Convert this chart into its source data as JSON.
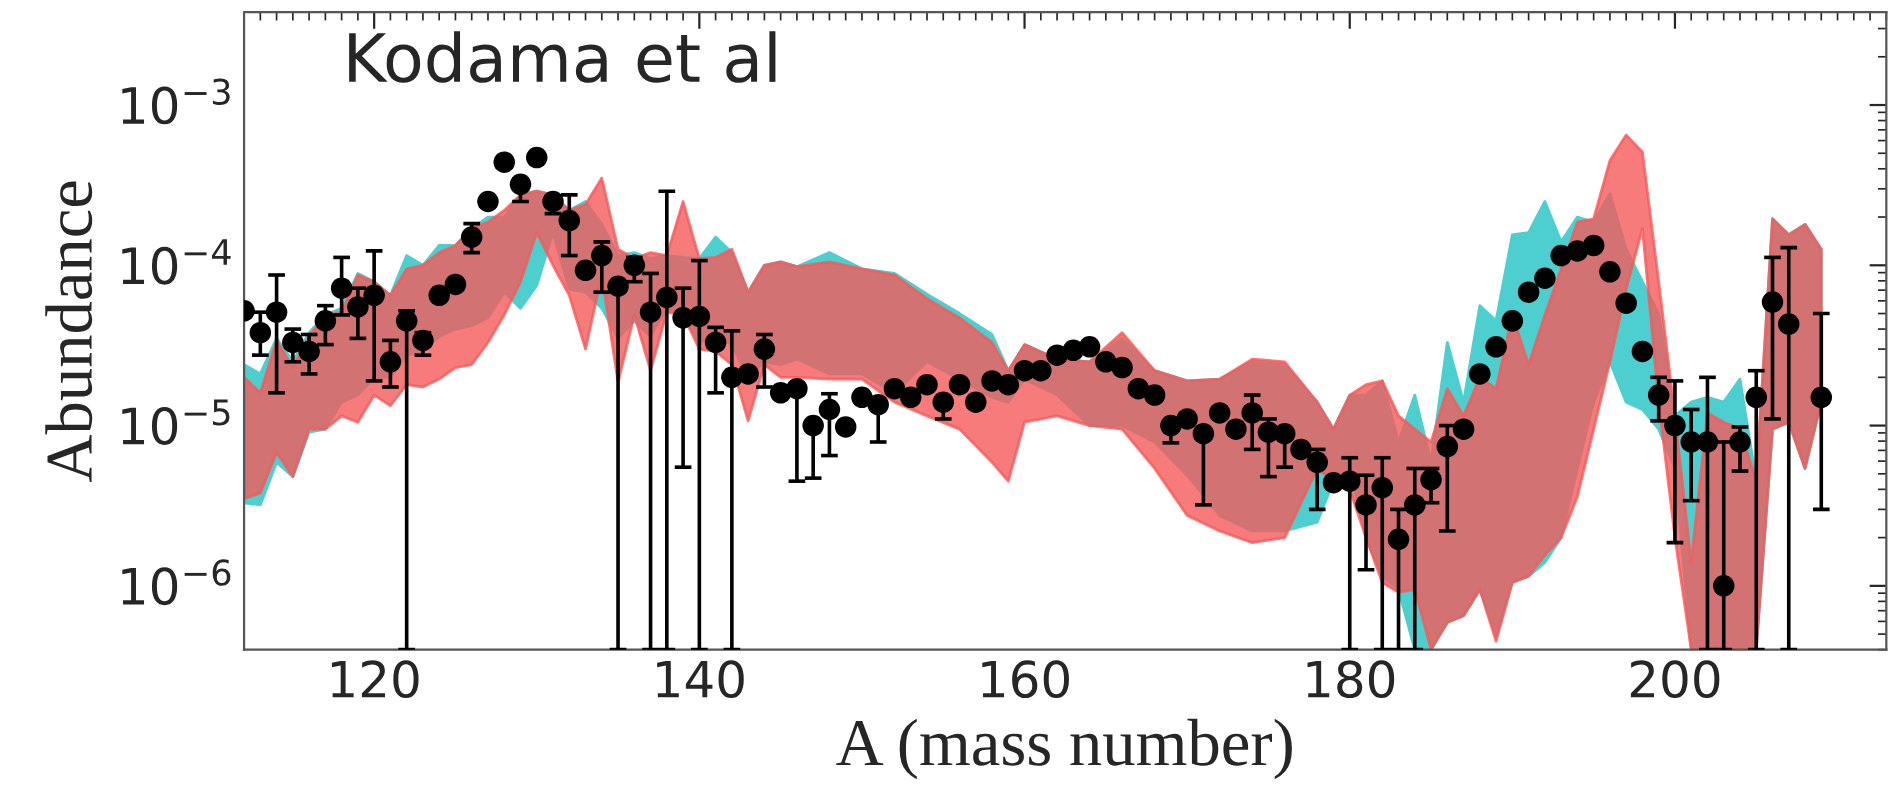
{
  "chart_data": {
    "type": "area",
    "xlabel": "A (mass number)",
    "ylabel": "Abundance",
    "annotations": [
      "Kodama et al"
    ],
    "xlim": [
      112,
      213
    ],
    "xticks": [
      120,
      140,
      160,
      180,
      200
    ],
    "ylim": [
      4e-07,
      0.0038
    ],
    "log": "y",
    "yticks": [
      {
        "value": 1e-06,
        "label": "10$^{−6}$"
      },
      {
        "value": 1e-05,
        "label": "10$^{−5}$"
      },
      {
        "value": 0.0001,
        "label": "10$^{−4}$"
      },
      {
        "value": 0.001,
        "label": "10$^{−3}$"
      }
    ],
    "grid": false,
    "series": [
      {
        "color": "#4ecfcf",
        "x": [
          112,
          113,
          114,
          115,
          116,
          117,
          118,
          119,
          120,
          121,
          122,
          123,
          124,
          125,
          126,
          127,
          128,
          129,
          130,
          131,
          132,
          133,
          134,
          135,
          136,
          137,
          138,
          139,
          140,
          141,
          142,
          143,
          144,
          145,
          146,
          148,
          150,
          152,
          154,
          156,
          158,
          159,
          160,
          162,
          164,
          166,
          168,
          170,
          172,
          174,
          176,
          178,
          179,
          180,
          181,
          182,
          183,
          184,
          185,
          186,
          187,
          188,
          189,
          190,
          191,
          192,
          193,
          194,
          195,
          196,
          197,
          198,
          199,
          200,
          201,
          202,
          203,
          204,
          205,
          206,
          207,
          208,
          209
        ],
        "values": [
          null,
          null,
          null,
          null,
          null,
          null,
          null,
          null,
          null,
          null,
          null,
          null,
          null,
          null,
          null,
          null,
          null,
          null,
          null,
          null,
          null,
          null,
          null,
          null,
          null,
          null,
          null,
          null,
          null,
          null,
          null,
          null,
          null,
          null,
          null,
          null,
          null,
          null,
          null,
          null,
          null,
          null,
          null,
          null,
          null,
          null,
          null,
          null,
          null,
          null,
          null,
          null,
          null,
          null,
          null,
          null,
          null,
          null,
          null,
          null,
          null,
          null,
          null,
          null,
          null,
          null,
          null,
          null,
          null,
          null,
          null,
          null,
          null,
          null,
          null,
          null,
          null,
          null,
          null,
          null,
          null,
          null,
          null
        ],
        "upper": [
          2.4e-05,
          2.1e-05,
          3.5e-05,
          2.5e-05,
          3.8e-05,
          4.9e-05,
          5.4e-05,
          8.9e-05,
          7.9e-05,
          6.5e-05,
          0.000115,
          0.0001,
          0.000133,
          0.000133,
          0.00017,
          0.0002,
          0.0002,
          0.000275,
          0.00029,
          0.000275,
          0.00022,
          0.00025,
          0.00018,
          0.000115,
          0.00012,
          0.00011,
          0.000115,
          0.000112,
          0.00011,
          0.00015,
          0.00012,
          6.8e-05,
          0.0001,
          0.000105,
          9.8e-05,
          0.00012,
          9.5e-05,
          8.9e-05,
          6.6e-05,
          5e-05,
          3.7e-05,
          2.2e-05,
          3.2e-05,
          2.6e-05,
          2.5e-05,
          3.5e-05,
          2.2e-05,
          1.9e-05,
          1.95e-05,
          2.5e-05,
          2.4e-05,
          1.4e-05,
          9.5e-06,
          1.55e-05,
          1.55e-05,
          1.9e-05,
          7.9e-06,
          1.55e-05,
          5.9e-06,
          3.3e-05,
          1.4e-05,
          5.6e-05,
          4.5e-05,
          0.000155,
          0.00016,
          0.00025,
          0.00014,
          0.0002,
          0.000186,
          0.00028,
          0.000126,
          7.9e-05,
          5e-05,
          1.15e-05,
          1.4e-05,
          1.5e-05,
          1.4e-05,
          1.95e-05,
          4.5e-06,
          0.000195,
          0.000155,
          0.00018,
          0.000126
        ],
        "lower": [
          3.3e-06,
          3.2e-06,
          5.9e-06,
          4.8e-06,
          9.1e-06,
          9.5e-06,
          1.4e-05,
          1.55e-05,
          2e-05,
          2e-05,
          2.75e-05,
          2.9e-05,
          3.6e-05,
          4e-05,
          4.2e-05,
          4.7e-05,
          6.8e-05,
          5.4e-05,
          7.5e-05,
          0.00016,
          7.1e-05,
          6.8e-05,
          5.4e-05,
          3.5e-05,
          4.5e-05,
          3.6e-05,
          5.4e-05,
          4.9e-05,
          3.3e-05,
          3.6e-05,
          3.2e-05,
          2e-05,
          2.5e-05,
          2.4e-05,
          2.6e-05,
          2.1e-05,
          2.1e-05,
          1.6e-05,
          2.5e-05,
          1.95e-05,
          1.5e-05,
          1.4e-05,
          1.95e-05,
          1.55e-05,
          1e-05,
          1e-05,
          7.9e-06,
          4.9e-06,
          2.75e-06,
          2.2e-06,
          2.2e-06,
          2.5e-06,
          4.5e-06,
          5.4e-06,
          2e-06,
          1.15e-06,
          9.5e-07,
          4e-07,
          4e-07,
          5.9e-07,
          6.5e-07,
          9.5e-07,
          4.9e-07,
          1.05e-06,
          1.15e-06,
          1.4e-06,
          2e-06,
          5.4e-06,
          1.4e-05,
          2.5e-05,
          1.4e-05,
          1.26e-05,
          9.5e-06,
          5.4e-06,
          4e-07,
          4e-07,
          4e-07,
          4e-07,
          4e-07,
          9.5e-06,
          1.05e-05,
          5.4e-06,
          1.4e-05
        ]
      },
      {
        "color": "#f55a5a",
        "x": [
          112,
          113,
          114,
          115,
          116,
          117,
          118,
          119,
          120,
          121,
          122,
          123,
          124,
          125,
          126,
          127,
          128,
          129,
          130,
          131,
          132,
          133,
          134,
          135,
          136,
          137,
          138,
          139,
          140,
          141,
          142,
          143,
          144,
          145,
          146,
          148,
          150,
          152,
          154,
          156,
          158,
          159,
          160,
          162,
          164,
          166,
          168,
          170,
          172,
          174,
          176,
          178,
          179,
          180,
          181,
          182,
          183,
          184,
          185,
          186,
          187,
          188,
          189,
          190,
          191,
          192,
          193,
          194,
          195,
          196,
          197,
          198,
          199,
          200,
          201,
          202,
          203,
          204,
          205,
          206,
          207,
          208,
          209
        ],
        "values": [
          null,
          null,
          null,
          null,
          null,
          null,
          null,
          null,
          null,
          null,
          null,
          null,
          null,
          null,
          null,
          null,
          null,
          null,
          null,
          null,
          null,
          null,
          null,
          null,
          null,
          null,
          null,
          null,
          null,
          null,
          null,
          null,
          null,
          null,
          null,
          null,
          null,
          null,
          null,
          null,
          null,
          null,
          null,
          null,
          null,
          null,
          null,
          null,
          null,
          null,
          null,
          null,
          null,
          null,
          null,
          null,
          null,
          null,
          null,
          null,
          null,
          null,
          null,
          null,
          null,
          null,
          null,
          null,
          null,
          null,
          null,
          null,
          null,
          null,
          null,
          null,
          null,
          null,
          null,
          null,
          null,
          null,
          null
        ],
        "upper": [
          2e-05,
          1.6e-05,
          3.4e-05,
          2.3e-05,
          3.6e-05,
          4.9e-05,
          5.1e-05,
          8.7e-05,
          7.9e-05,
          6.5e-05,
          9.5e-05,
          0.0001,
          0.00012,
          0.000133,
          0.00017,
          0.000186,
          0.00022,
          0.000275,
          0.00029,
          0.000275,
          0.00022,
          0.00024,
          0.00035,
          0.000126,
          0.00011,
          0.00012,
          0.000115,
          0.00025,
          0.00011,
          0.000112,
          0.000126,
          6.8e-05,
          0.0001,
          0.000105,
          9.8e-05,
          0.000105,
          9.5e-05,
          8.7e-05,
          6.2e-05,
          4.7e-05,
          3.3e-05,
          2.2e-05,
          3.2e-05,
          2.6e-05,
          2.5e-05,
          3.8e-05,
          2.2e-05,
          1.9e-05,
          1.95e-05,
          2.6e-05,
          2.5e-05,
          1.4e-05,
          9.5e-06,
          1.55e-05,
          1.8e-05,
          1.9e-05,
          1.15e-05,
          9.5e-06,
          7.9e-06,
          1.7e-05,
          1.15e-05,
          2e-05,
          1.7e-05,
          4.9e-05,
          2.4e-05,
          4.9e-05,
          9.5e-05,
          0.000186,
          0.000195,
          0.00045,
          0.00065,
          0.00051,
          7.9e-05,
          1.15e-05,
          1.4e-06,
          1.2e-05,
          1.05e-05,
          9.5e-06,
          4.5e-06,
          0.000195,
          0.000155,
          0.00018,
          0.000126
        ],
        "lower": [
          3.5e-06,
          3.8e-06,
          6.8e-06,
          4.8e-06,
          9.5e-06,
          9.5e-06,
          1.15e-05,
          1.05e-05,
          1.55e-05,
          1.33e-05,
          1.8e-05,
          1.74e-05,
          1.95e-05,
          2.3e-05,
          2.4e-05,
          3.3e-05,
          4.9e-05,
          7.9e-05,
          0.00016,
          0.0001,
          6.5e-05,
          3e-05,
          8.7e-05,
          1.86e-05,
          4.9e-05,
          2.2e-05,
          5.1e-05,
          4.9e-05,
          3e-05,
          2.9e-05,
          2.4e-05,
          1.07e-05,
          2.4e-05,
          2e-05,
          2e-05,
          1.95e-05,
          1.95e-05,
          1.4e-05,
          1.15e-05,
          9.5e-06,
          5.9e-06,
          4.5e-06,
          1.05e-05,
          1.15e-05,
          1e-05,
          9.5e-06,
          5.4e-06,
          2.75e-06,
          2.2e-06,
          1.86e-06,
          2e-06,
          5.4e-06,
          4.5e-06,
          4e-06,
          2e-06,
          1.05e-06,
          9.1e-07,
          9.5e-07,
          4e-07,
          5.9e-07,
          6.5e-07,
          9.5e-07,
          4.5e-07,
          1.05e-06,
          1.15e-06,
          1.55e-06,
          2e-06,
          3.6e-06,
          9.5e-06,
          2.5e-05,
          7.1e-05,
          0.00017,
          1.4e-05,
          2e-06,
          4e-07,
          4e-07,
          4e-07,
          4e-07,
          4e-07,
          9.5e-06,
          1.05e-05,
          5.4e-06,
          1.4e-05
        ]
      },
      {
        "type": "scatter",
        "color": "#000000",
        "marker": "circle",
        "x": [
          112,
          113,
          114,
          115,
          116,
          117,
          118,
          119,
          120,
          121,
          122,
          123,
          124,
          125,
          126,
          127,
          128,
          129,
          130,
          131,
          132,
          133,
          134,
          135,
          136,
          137,
          138,
          139,
          140,
          141,
          142,
          143,
          144,
          145,
          146,
          147,
          148,
          149,
          150,
          151,
          152,
          153,
          154,
          155,
          156,
          157,
          158,
          159,
          160,
          161,
          162,
          163,
          164,
          165,
          166,
          167,
          168,
          169,
          170,
          171,
          172,
          173,
          174,
          175,
          176,
          177,
          178,
          179,
          180,
          181,
          182,
          183,
          184,
          185,
          186,
          187,
          188,
          189,
          190,
          191,
          192,
          193,
          194,
          195,
          196,
          197,
          198,
          199,
          200,
          201,
          202,
          203,
          204,
          205,
          206,
          207,
          209
        ],
        "values": [
          5.2e-05,
          3.8e-05,
          5.1e-05,
          3.3e-05,
          2.9e-05,
          4.5e-05,
          7.2e-05,
          5.5e-05,
          6.5e-05,
          2.5e-05,
          4.5e-05,
          3.4e-05,
          6.5e-05,
          7.6e-05,
          0.00015,
          0.00025,
          0.00044,
          0.00032,
          0.00047,
          0.00025,
          0.00019,
          9.3e-05,
          0.000115,
          7.4e-05,
          0.0001,
          5.1e-05,
          6.3e-05,
          4.7e-05,
          4.8e-05,
          3.3e-05,
          2e-05,
          2.1e-05,
          3e-05,
          1.6e-05,
          1.7e-05,
          1e-05,
          1.26e-05,
          9.8e-06,
          1.5e-05,
          1.35e-05,
          1.7e-05,
          1.5e-05,
          1.8e-05,
          1.4e-05,
          1.8e-05,
          1.4e-05,
          1.9e-05,
          1.8e-05,
          2.2e-05,
          2.2e-05,
          2.75e-05,
          2.95e-05,
          3.1e-05,
          2.5e-05,
          2.3e-05,
          1.7e-05,
          1.55e-05,
          1e-05,
          1.1e-05,
          8.9e-06,
          1.2e-05,
          9.5e-06,
          1.2e-05,
          9.1e-06,
          8.9e-06,
          7.1e-06,
          5.9e-06,
          4.4e-06,
          4.5e-06,
          3.2e-06,
          4.1e-06,
          1.95e-06,
          3.2e-06,
          4.6e-06,
          7.4e-06,
          9.5e-06,
          2.1e-05,
          3.1e-05,
          4.5e-05,
          6.8e-05,
          8.3e-05,
          0.000115,
          0.000123,
          0.000133,
          9.1e-05,
          5.8e-05,
          2.9e-05,
          1.55e-05,
          1e-05,
          7.9e-06,
          7.9e-06,
          1e-06,
          7.9e-06,
          1.5e-05,
          5.9e-05,
          4.3e-05,
          1.5e-05
        ],
        "errors": [
          null,
          [
            2.75e-05,
            5.1e-05
          ],
          [
            1.6e-05,
            8.7e-05
          ],
          [
            2.5e-05,
            4e-05
          ],
          [
            2.1e-05,
            3.7e-05
          ],
          [
            3.2e-05,
            5.6e-05
          ],
          [
            4.9e-05,
            0.000112
          ],
          [
            3.5e-05,
            7.2e-05
          ],
          [
            1.9e-05,
            0.000123
          ],
          [
            1.74e-05,
            3.4e-05
          ],
          [
            4e-07,
            5.2e-05
          ],
          [
            2.75e-05,
            3.8e-05
          ],
          null,
          null,
          [
            0.00012,
            0.000182
          ],
          null,
          null,
          [
            0.00025,
            0.000347
          ],
          null,
          [
            0.00021,
            0.00027
          ],
          [
            0.000115,
            0.000275
          ],
          null,
          [
            6.8e-05,
            0.00014
          ],
          [
            4e-07,
            7.9e-05
          ],
          [
            7.9e-05,
            0.000112
          ],
          [
            4e-07,
            8.9e-05
          ],
          [
            4e-07,
            0.00029
          ],
          [
            5.5e-06,
            7.2e-05
          ],
          [
            4e-07,
            0.000107
          ],
          [
            1.6e-05,
            4.1e-05
          ],
          [
            4e-07,
            3.9e-05
          ],
          null,
          [
            1.74e-05,
            3.7e-05
          ],
          null,
          [
            4.5e-06,
            1.7e-05
          ],
          [
            4.7e-06,
            1e-05
          ],
          [
            6.5e-06,
            1.58e-05
          ],
          null,
          null,
          [
            7.9e-06,
            1.35e-05
          ],
          null,
          null,
          null,
          [
            1.1e-05,
            1.4e-05
          ],
          null,
          null,
          null,
          null,
          null,
          null,
          null,
          null,
          null,
          null,
          null,
          null,
          null,
          [
            7.8e-06,
            1e-05
          ],
          null,
          [
            3.2e-06,
            8.9e-06
          ],
          null,
          null,
          [
            7.1e-06,
            1.55e-05
          ],
          [
            4.8e-06,
            1.1e-05
          ],
          [
            5.5e-06,
            8.9e-06
          ],
          null,
          [
            3e-06,
            7.1e-06
          ],
          null,
          [
            4e-07,
            6.3e-06
          ],
          [
            1.26e-06,
            4.9e-06
          ],
          [
            4e-07,
            6.3e-06
          ],
          [
            4e-07,
            3e-06
          ],
          [
            4e-07,
            5.4e-06
          ],
          [
            3.3e-06,
            5.4e-06
          ],
          [
            2.2e-06,
            1e-05
          ],
          null,
          null,
          null,
          null,
          null,
          null,
          null,
          null,
          null,
          null,
          null,
          null,
          [
            1.07e-05,
            2e-05
          ],
          [
            1.86e-06,
            1.9e-05
          ],
          [
            3.4e-06,
            1.26e-05
          ],
          [
            4e-07,
            2e-05
          ],
          [
            4e-07,
            7.9e-06
          ],
          [
            5.2e-06,
            9.8e-06
          ],
          [
            4e-07,
            2.2e-05
          ],
          [
            1.1e-05,
            0.000112
          ],
          [
            4e-07,
            0.000129
          ],
          [
            3e-06,
            5e-05
          ]
        ]
      }
    ]
  }
}
